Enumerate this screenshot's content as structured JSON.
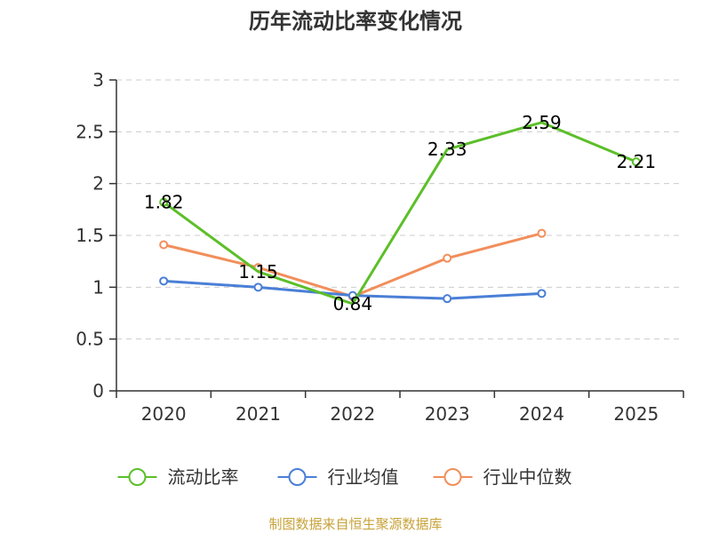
{
  "chart_data": {
    "type": "line",
    "title": "历年流动比率变化情况",
    "categories": [
      "2020",
      "2021",
      "2022",
      "2023",
      "2024",
      "2025"
    ],
    "ylim": [
      0,
      3
    ],
    "yticks": [
      "0",
      "0.5",
      "1",
      "1.5",
      "2",
      "2.5",
      "3"
    ],
    "ytick_values": [
      0,
      0.5,
      1,
      1.5,
      2,
      2.5,
      3
    ],
    "grid": true,
    "legend_position": "bottom-center",
    "series": [
      {
        "name": "流动比率",
        "color": "#5cbf29",
        "values": [
          1.82,
          1.15,
          0.84,
          2.33,
          2.59,
          2.21
        ],
        "labels": [
          "1.82",
          "1.15",
          "0.84",
          "2.33",
          "2.59",
          "2.21"
        ],
        "show_labels": true,
        "markers": "end-only"
      },
      {
        "name": "行业均值",
        "color": "#4a7fd6",
        "values": [
          1.06,
          1.0,
          0.92,
          0.89,
          0.94,
          null
        ],
        "show_labels": false,
        "markers": "all"
      },
      {
        "name": "行业中位数",
        "color": "#f28e5b",
        "values": [
          1.41,
          1.19,
          0.91,
          1.28,
          1.52,
          null
        ],
        "show_labels": false,
        "markers": "all"
      }
    ],
    "source": "制图数据来自恒生聚源数据库"
  }
}
